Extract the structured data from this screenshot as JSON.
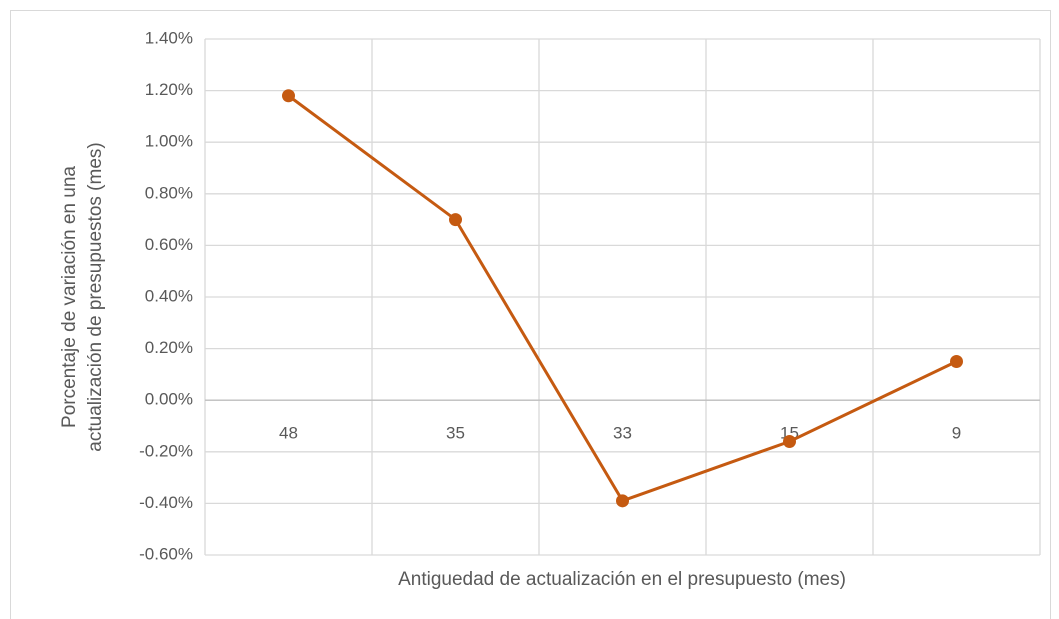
{
  "chart_data": {
    "type": "line",
    "x_label": "Antiguedad de actualización en el presupuesto (mes)",
    "y_label": [
      "Porcentaje de variación en una",
      "actualización de presupuestos (mes)"
    ],
    "categories": [
      "48",
      "35",
      "33",
      "15",
      "9"
    ],
    "series": [
      {
        "name": "Porcentaje de variación",
        "color": "#c55a11",
        "values": [
          1.18,
          0.7,
          -0.39,
          -0.16,
          0.15
        ]
      }
    ],
    "ylim": [
      -0.6,
      1.4
    ],
    "yticks": [
      {
        "value": -0.6,
        "label": "-0.60%"
      },
      {
        "value": -0.4,
        "label": "-0.40%"
      },
      {
        "value": -0.2,
        "label": "-0.20%"
      },
      {
        "value": 0,
        "label": "0.00%"
      },
      {
        "value": 0.2,
        "label": "0.20%"
      },
      {
        "value": 0.4,
        "label": "0.40%"
      },
      {
        "value": 0.6,
        "label": "0.60%"
      },
      {
        "value": 0.8,
        "label": "0.80%"
      },
      {
        "value": 1.0,
        "label": "1.00%"
      },
      {
        "value": 1.2,
        "label": "1.20%"
      },
      {
        "value": 1.4,
        "label": "1.40%"
      }
    ],
    "grid": true
  }
}
